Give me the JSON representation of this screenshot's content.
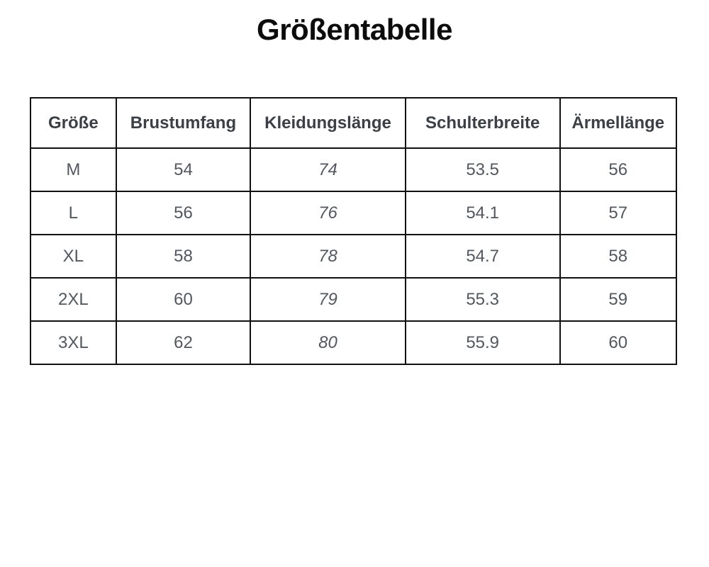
{
  "title": "Größentabelle",
  "colors": {
    "background": "#ffffff",
    "border": "#111111",
    "header_text": "#3b4046",
    "body_text": "#53575e",
    "title_text": "#0c0c0c"
  },
  "table": {
    "headers": [
      "Größe",
      "Brustumfang",
      "Kleidungslänge",
      "Schulterbreite",
      "Ärmellänge"
    ],
    "rows": [
      [
        "M",
        "54",
        "74",
        "53.5",
        "56"
      ],
      [
        "L",
        "56",
        "76",
        "54.1",
        "57"
      ],
      [
        "XL",
        "58",
        "78",
        "54.7",
        "58"
      ],
      [
        "2XL",
        "60",
        "79",
        "55.3",
        "59"
      ],
      [
        "3XL",
        "62",
        "80",
        "55.9",
        "60"
      ]
    ]
  }
}
